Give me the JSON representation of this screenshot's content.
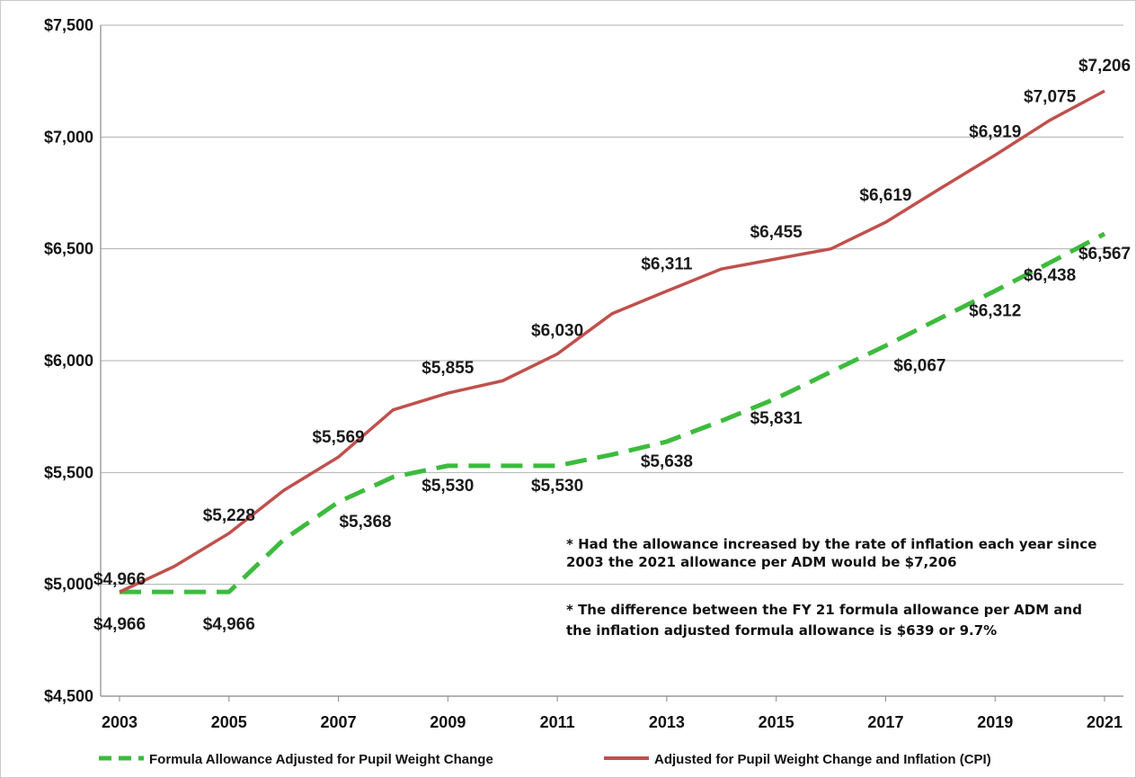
{
  "chart_data": {
    "type": "line",
    "x": [
      2003,
      2004,
      2005,
      2006,
      2007,
      2008,
      2009,
      2010,
      2011,
      2012,
      2013,
      2014,
      2015,
      2016,
      2017,
      2018,
      2019,
      2020,
      2021
    ],
    "series": [
      {
        "name": "Formula Allowance Adjusted for Pupil Weight Change",
        "color": "#3dbb3d",
        "style": "dashed",
        "values": [
          4966,
          4966,
          4966,
          5200,
          5368,
          5480,
          5530,
          5530,
          5530,
          5580,
          5638,
          5731,
          5831,
          5950,
          6067,
          6190,
          6312,
          6438,
          6567
        ]
      },
      {
        "name": "Adjusted for Pupil Weight Change and Inflation (CPI)",
        "color": "#c0504d",
        "style": "solid",
        "values": [
          4966,
          5080,
          5228,
          5420,
          5569,
          5780,
          5855,
          5910,
          6030,
          6210,
          6311,
          6410,
          6455,
          6500,
          6619,
          6770,
          6919,
          7075,
          7206
        ]
      }
    ],
    "yticks": [
      "$4,500",
      "$5,000",
      "$5,500",
      "$6,000",
      "$6,500",
      "$7,000",
      "$7,500"
    ],
    "xticks": [
      "2003",
      "2005",
      "2007",
      "2009",
      "2011",
      "2013",
      "2015",
      "2017",
      "2019",
      "2021"
    ],
    "ylim": [
      4500,
      7500
    ],
    "grid": true,
    "legend": "bottom",
    "green_labels": [
      {
        "year": 2003,
        "text": "$4,966"
      },
      {
        "year": 2005,
        "text": "$4,966"
      },
      {
        "year": 2007,
        "text": "$5,368"
      },
      {
        "year": 2009,
        "text": "$5,530"
      },
      {
        "year": 2011,
        "text": "$5,530"
      },
      {
        "year": 2013,
        "text": "$5,638"
      },
      {
        "year": 2015,
        "text": "$5,831"
      },
      {
        "year": 2017,
        "text": "$6,067"
      },
      {
        "year": 2019,
        "text": "$6,312"
      },
      {
        "year": 2020,
        "text": "$6,438"
      },
      {
        "year": 2021,
        "text": "$6,567"
      }
    ],
    "red_labels": [
      {
        "year": 2003,
        "text": "$4,966"
      },
      {
        "year": 2005,
        "text": "$5,228"
      },
      {
        "year": 2007,
        "text": "$5,569"
      },
      {
        "year": 2009,
        "text": "$5,855"
      },
      {
        "year": 2011,
        "text": "$6,030"
      },
      {
        "year": 2013,
        "text": "$6,311"
      },
      {
        "year": 2015,
        "text": "$6,455"
      },
      {
        "year": 2017,
        "text": "$6,619"
      },
      {
        "year": 2019,
        "text": "$6,919"
      },
      {
        "year": 2020,
        "text": "$7,075"
      },
      {
        "year": 2021,
        "text": "$7,206"
      }
    ]
  },
  "notes": {
    "note1_line1": "* Had the allowance increased by the rate of inflation each year since",
    "note1_line2": "2003 the 2021 allowance per ADM would be $7,206",
    "note2_line1": "* The difference  between  the FY 21 formula allowance per ADM and",
    "note2_line2": "the inflation adjusted formula allowance is $639  or 9.7%"
  },
  "legend": {
    "green_label": "Formula Allowance Adjusted for Pupil Weight Change",
    "red_label": "Adjusted for Pupil Weight Change and Inflation (CPI)"
  }
}
